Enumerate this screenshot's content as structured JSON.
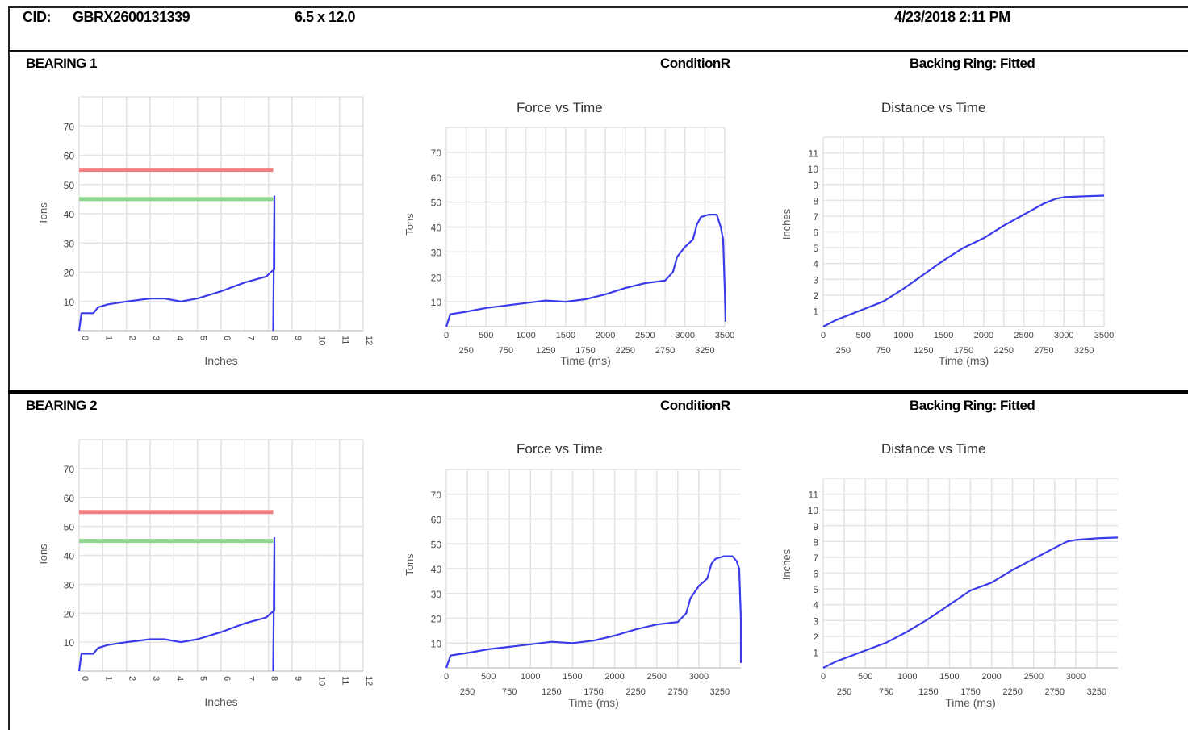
{
  "header": {
    "cid_label": "CID:",
    "cid_value": "GBRX2600131339",
    "size": "6.5 x 12.0",
    "datetime": "4/23/2018 2:11 PM"
  },
  "sections": [
    {
      "bearing_label": "BEARING 1",
      "condition": "ConditionR",
      "backing_ring": "Backing Ring: Fitted"
    },
    {
      "bearing_label": "BEARING 2",
      "condition": "ConditionR",
      "backing_ring": "Backing Ring: Fitted"
    }
  ],
  "colors": {
    "series": "#3b3bea",
    "upper_limit": "#f08080",
    "lower_limit": "#8fd68f",
    "grid": "#e4e4e4",
    "axis_text": "#444444"
  },
  "chart_data": [
    {
      "id": "b1-tons-inches",
      "type": "line",
      "title": "",
      "xlabel": "Inches",
      "ylabel": "Tons",
      "xlim": [
        0,
        12
      ],
      "ylim": [
        0,
        80
      ],
      "xticks": [
        "0",
        "1",
        "2",
        "3",
        "4",
        "5",
        "6",
        "7",
        "8",
        "9",
        "10",
        "11",
        "12"
      ],
      "yticks": [
        "10",
        "20",
        "30",
        "40",
        "50",
        "60",
        "70"
      ],
      "limit_lines": [
        {
          "name": "upper",
          "y": 55,
          "x": [
            0,
            8.2
          ],
          "color": "#f08080"
        },
        {
          "name": "lower",
          "y": 45,
          "x": [
            0,
            8.2
          ],
          "color": "#8fd68f"
        }
      ],
      "series": [
        {
          "x": [
            0,
            0.1,
            0.6,
            0.8,
            1.2,
            2,
            3,
            3.6,
            4.3,
            5,
            6,
            7,
            7.9,
            8.1,
            8.25,
            8.25,
            8.2
          ],
          "y": [
            0,
            6,
            6,
            8,
            9,
            10,
            11,
            11,
            10,
            11,
            13.5,
            16.5,
            18.5,
            20,
            21,
            46,
            0
          ]
        }
      ]
    },
    {
      "id": "b1-force-time",
      "type": "line",
      "title": "Force vs Time",
      "xlabel": "Time (ms)",
      "ylabel": "Tons",
      "xlim": [
        0,
        3500
      ],
      "ylim": [
        0,
        80
      ],
      "xticks": [
        "0",
        "250",
        "500",
        "750",
        "1000",
        "1250",
        "1500",
        "1750",
        "2000",
        "2250",
        "2500",
        "2750",
        "3000",
        "3250",
        "3500"
      ],
      "yticks": [
        "10",
        "20",
        "30",
        "40",
        "50",
        "60",
        "70"
      ],
      "series": [
        {
          "x": [
            0,
            50,
            250,
            500,
            750,
            1000,
            1250,
            1500,
            1750,
            2000,
            2250,
            2500,
            2750,
            2850,
            2900,
            3000,
            3100,
            3150,
            3200,
            3300,
            3400,
            3450,
            3480,
            3500,
            3510
          ],
          "y": [
            0,
            5,
            6,
            7.5,
            8.5,
            9.5,
            10.5,
            10,
            11,
            13,
            15.5,
            17.5,
            18.5,
            22,
            28,
            32,
            35,
            41,
            44,
            45,
            45,
            40,
            35,
            15,
            2
          ]
        }
      ]
    },
    {
      "id": "b1-distance-time",
      "type": "line",
      "title": "Distance vs Time",
      "xlabel": "Time (ms)",
      "ylabel": "Inches",
      "xlim": [
        0,
        3500
      ],
      "ylim": [
        0,
        12
      ],
      "xticks": [
        "0",
        "250",
        "500",
        "750",
        "1000",
        "1250",
        "1500",
        "1750",
        "2000",
        "2250",
        "2500",
        "2750",
        "3000",
        "3250",
        "3500"
      ],
      "yticks": [
        "1",
        "2",
        "3",
        "4",
        "5",
        "6",
        "7",
        "8",
        "9",
        "10",
        "11"
      ],
      "series": [
        {
          "x": [
            0,
            150,
            300,
            500,
            750,
            1000,
            1250,
            1500,
            1750,
            2000,
            2250,
            2500,
            2750,
            2900,
            3000,
            3250,
            3500
          ],
          "y": [
            0,
            0.4,
            0.7,
            1.1,
            1.6,
            2.4,
            3.3,
            4.2,
            5,
            5.6,
            6.4,
            7.1,
            7.8,
            8.1,
            8.2,
            8.25,
            8.3
          ]
        }
      ]
    },
    {
      "id": "b2-tons-inches",
      "type": "line",
      "title": "",
      "xlabel": "Inches",
      "ylabel": "Tons",
      "xlim": [
        0,
        12
      ],
      "ylim": [
        0,
        80
      ],
      "xticks": [
        "0",
        "1",
        "2",
        "3",
        "4",
        "5",
        "6",
        "7",
        "8",
        "9",
        "10",
        "11",
        "12"
      ],
      "yticks": [
        "10",
        "20",
        "30",
        "40",
        "50",
        "60",
        "70"
      ],
      "limit_lines": [
        {
          "name": "upper",
          "y": 55,
          "x": [
            0,
            8.2
          ],
          "color": "#f08080"
        },
        {
          "name": "lower",
          "y": 45,
          "x": [
            0,
            8.2
          ],
          "color": "#8fd68f"
        }
      ],
      "series": [
        {
          "x": [
            0,
            0.1,
            0.6,
            0.8,
            1.2,
            2,
            3,
            3.6,
            4.3,
            5,
            6,
            7,
            7.9,
            8.1,
            8.25,
            8.25,
            8.2
          ],
          "y": [
            0,
            6,
            6,
            8,
            9,
            10,
            11,
            11,
            10,
            11,
            13.5,
            16.5,
            18.5,
            20,
            21,
            46,
            0
          ]
        }
      ]
    },
    {
      "id": "b2-force-time",
      "type": "line",
      "title": "Force vs Time",
      "xlabel": "Time (ms)",
      "ylabel": "Tons",
      "xlim": [
        0,
        3500
      ],
      "ylim": [
        0,
        80
      ],
      "xticks": [
        "0",
        "250",
        "500",
        "750",
        "1000",
        "1250",
        "1500",
        "1750",
        "2000",
        "2250",
        "2500",
        "2750",
        "3000",
        "3250"
      ],
      "yticks": [
        "10",
        "20",
        "30",
        "40",
        "50",
        "60",
        "70"
      ],
      "series": [
        {
          "x": [
            0,
            50,
            250,
            500,
            750,
            1000,
            1250,
            1500,
            1750,
            2000,
            2250,
            2500,
            2750,
            2850,
            2900,
            3000,
            3100,
            3150,
            3200,
            3300,
            3400,
            3450,
            3480,
            3500,
            3500
          ],
          "y": [
            0,
            5,
            6,
            7.5,
            8.5,
            9.5,
            10.5,
            10,
            11,
            13,
            15.5,
            17.5,
            18.5,
            22,
            28,
            33,
            36,
            42,
            44,
            45,
            45,
            43,
            40,
            20,
            2
          ]
        }
      ]
    },
    {
      "id": "b2-distance-time",
      "type": "line",
      "title": "Distance vs Time",
      "xlabel": "Time (ms)",
      "ylabel": "Inches",
      "xlim": [
        0,
        3500
      ],
      "ylim": [
        0,
        12
      ],
      "xticks": [
        "0",
        "250",
        "500",
        "750",
        "1000",
        "1250",
        "1500",
        "1750",
        "2000",
        "2250",
        "2500",
        "2750",
        "3000",
        "3250"
      ],
      "yticks": [
        "1",
        "2",
        "3",
        "4",
        "5",
        "6",
        "7",
        "8",
        "9",
        "10",
        "11"
      ],
      "series": [
        {
          "x": [
            0,
            150,
            300,
            500,
            750,
            1000,
            1250,
            1500,
            1750,
            2000,
            2250,
            2500,
            2750,
            2900,
            3000,
            3250,
            3500
          ],
          "y": [
            0,
            0.4,
            0.7,
            1.1,
            1.6,
            2.3,
            3.1,
            4,
            4.9,
            5.4,
            6.2,
            6.9,
            7.6,
            8,
            8.1,
            8.2,
            8.25
          ]
        }
      ]
    }
  ]
}
